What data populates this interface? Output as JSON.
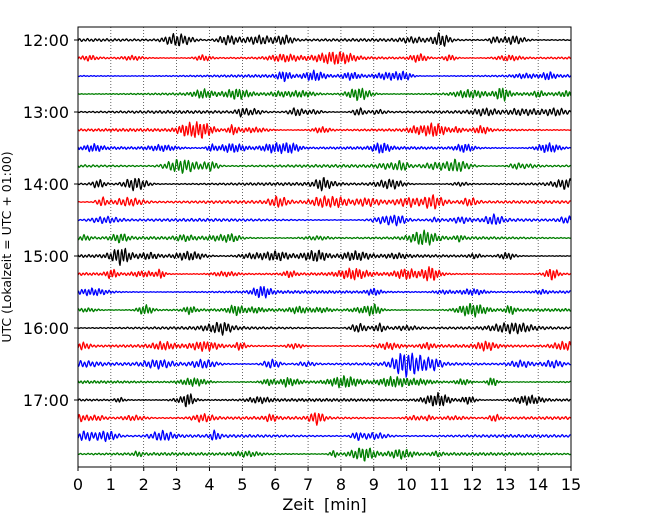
{
  "chart_data": {
    "type": "line",
    "title": "",
    "xlabel": "Zeit  [min]",
    "ylabel": "UTC (Lokalzeit = UTC + 01:00)",
    "xlim": [
      0,
      15
    ],
    "x_ticks": [
      "0",
      "1",
      "2",
      "3",
      "4",
      "5",
      "6",
      "7",
      "8",
      "9",
      "10",
      "11",
      "12",
      "13",
      "14",
      "15"
    ],
    "y_ticks": [
      "12:00",
      "13:00",
      "14:00",
      "15:00",
      "16:00",
      "17:00"
    ],
    "grid": "vertical dotted at each minute",
    "trace_interval_minutes": 15,
    "trace_colors": [
      "#000000",
      "#ff0000",
      "#0000ff",
      "#007f00"
    ],
    "series": [
      {
        "start": "12:00",
        "color": "#000000"
      },
      {
        "start": "12:15",
        "color": "#ff0000"
      },
      {
        "start": "12:30",
        "color": "#0000ff"
      },
      {
        "start": "12:45",
        "color": "#007f00"
      },
      {
        "start": "13:00",
        "color": "#000000"
      },
      {
        "start": "13:15",
        "color": "#ff0000"
      },
      {
        "start": "13:30",
        "color": "#0000ff"
      },
      {
        "start": "13:45",
        "color": "#007f00"
      },
      {
        "start": "14:00",
        "color": "#000000"
      },
      {
        "start": "14:15",
        "color": "#ff0000"
      },
      {
        "start": "14:30",
        "color": "#0000ff"
      },
      {
        "start": "14:45",
        "color": "#007f00"
      },
      {
        "start": "15:00",
        "color": "#000000"
      },
      {
        "start": "15:15",
        "color": "#ff0000"
      },
      {
        "start": "15:30",
        "color": "#0000ff"
      },
      {
        "start": "15:45",
        "color": "#007f00"
      },
      {
        "start": "16:00",
        "color": "#000000"
      },
      {
        "start": "16:15",
        "color": "#ff0000"
      },
      {
        "start": "16:30",
        "color": "#0000ff"
      },
      {
        "start": "16:45",
        "color": "#007f00"
      },
      {
        "start": "17:00",
        "color": "#000000"
      },
      {
        "start": "17:15",
        "color": "#ff0000"
      },
      {
        "start": "17:30",
        "color": "#0000ff"
      },
      {
        "start": "17:45",
        "color": "#007f00"
      }
    ]
  }
}
